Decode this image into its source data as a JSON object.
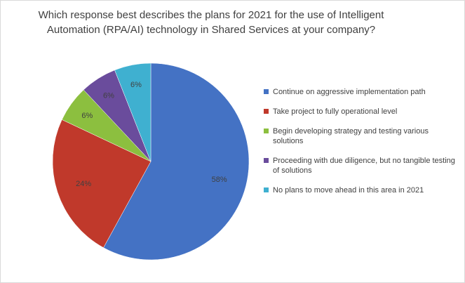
{
  "chart_data": {
    "type": "pie",
    "title_lines": [
      "Which response best describes the plans for 2021 for the use of Intelligent",
      "Automation (RPA/AI) technology in Shared Services at your company?"
    ],
    "slices": [
      {
        "label": "Continue on aggressive implementation path",
        "value": 58,
        "value_label": "58%",
        "color": "#4472c4"
      },
      {
        "label": "Take project to fully operational level",
        "value": 24,
        "value_label": "24%",
        "color": "#c0392b"
      },
      {
        "label": "Begin developing strategy and testing various solutions",
        "value": 6,
        "value_label": "6%",
        "color": "#8cbf3f"
      },
      {
        "label": "Proceeding with due diligence, but no tangible testing of solutions",
        "value": 6,
        "value_label": "6%",
        "color": "#6a4c9c"
      },
      {
        "label": "No plans to move ahead in this area in 2021",
        "value": 6,
        "value_label": "6%",
        "color": "#3fb0d0"
      }
    ],
    "legend_position": "right",
    "start_angle_deg": 0,
    "direction": "clockwise"
  }
}
